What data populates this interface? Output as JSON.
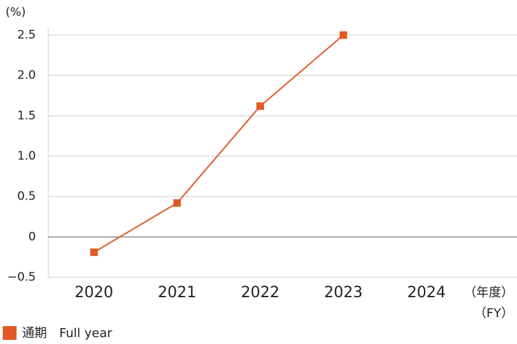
{
  "chart_data": {
    "type": "line",
    "y_label": "(%)",
    "x_label": [
      "（年度）",
      "（FY）"
    ],
    "categories": [
      "2020",
      "2021",
      "2022",
      "2023",
      "2024"
    ],
    "series": [
      {
        "name": "通期　Full year",
        "color": "#e05a26",
        "values": [
          -0.19,
          0.42,
          1.62,
          2.5,
          null
        ]
      }
    ],
    "ylim": [
      -0.5,
      2.5
    ],
    "yticks": [
      {
        "value": -0.5,
        "label": "−0.5"
      },
      0,
      0.5,
      {
        "value": 1,
        "label": "1.0"
      },
      1.5,
      {
        "value": 2,
        "label": "2.0"
      },
      2.5
    ],
    "grid": true
  }
}
